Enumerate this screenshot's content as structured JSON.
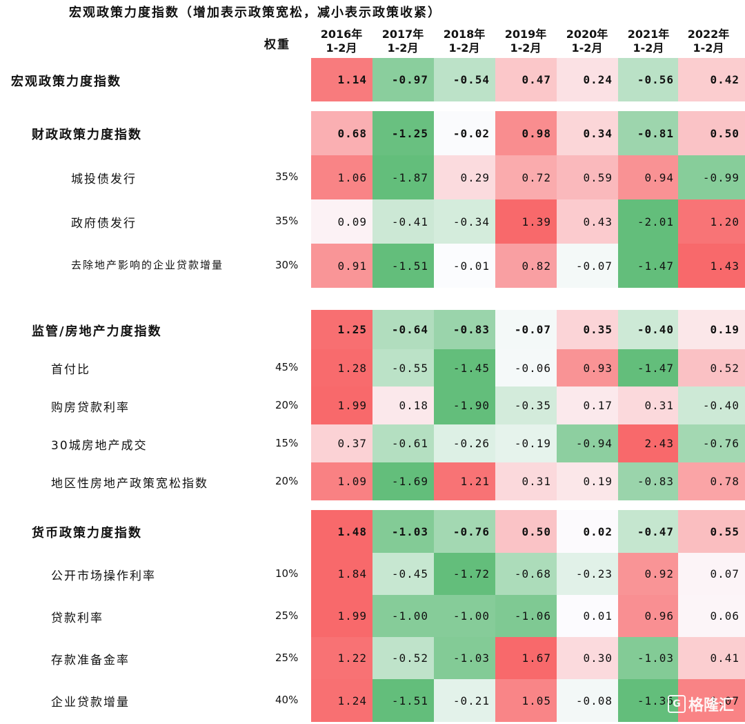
{
  "title": "宏观政策力度指数（增加表示政策宽松，减小表示政策收紧）",
  "weight_header": "权重",
  "watermark": {
    "badge": "G",
    "text": "格隆汇"
  },
  "chart_data": {
    "type": "heatmap",
    "title": "宏观政策力度指数（增加表示政策宽松，减小表示政策收紧）",
    "columns": [
      {
        "year": "2016年",
        "period": "1-2月"
      },
      {
        "year": "2017年",
        "period": "1-2月"
      },
      {
        "year": "2018年",
        "period": "1-2月"
      },
      {
        "year": "2019年",
        "period": "1-2月"
      },
      {
        "year": "2020年",
        "period": "1-2月"
      },
      {
        "year": "2021年",
        "period": "1-2月"
      },
      {
        "year": "2022年",
        "period": "1-2月"
      }
    ],
    "color_scale": {
      "positive": "#f8696b",
      "neutral": "#fcfcff",
      "negative": "#63be7b"
    },
    "rows": [
      {
        "label": "宏观政策力度指数",
        "level": 0,
        "weight": "",
        "values": [
          "1.14",
          "-0.97",
          "-0.54",
          "0.47",
          "0.24",
          "-0.56",
          "0.42"
        ]
      },
      {
        "label": "财政政策力度指数",
        "level": 1,
        "weight": "",
        "values": [
          "0.68",
          "-1.25",
          "-0.02",
          "0.98",
          "0.34",
          "-0.81",
          "0.50"
        ]
      },
      {
        "label": "城投债发行",
        "level": 2,
        "weight": "35%",
        "values": [
          "1.06",
          "-1.87",
          "0.29",
          "0.72",
          "0.59",
          "0.94",
          "-0.99"
        ]
      },
      {
        "label": "政府债发行",
        "level": 2,
        "weight": "35%",
        "values": [
          "0.09",
          "-0.41",
          "-0.34",
          "1.39",
          "0.43",
          "-2.01",
          "1.20"
        ]
      },
      {
        "label": "去除地产影响的企业贷款增量",
        "level": 2,
        "weight": "30%",
        "values": [
          "0.91",
          "-1.51",
          "-0.01",
          "0.82",
          "-0.07",
          "-1.47",
          "1.43"
        ]
      },
      {
        "label": "监管/房地产力度指数",
        "level": 1,
        "weight": "",
        "values": [
          "1.25",
          "-0.64",
          "-0.83",
          "-0.07",
          "0.35",
          "-0.40",
          "0.19"
        ]
      },
      {
        "label": "首付比",
        "level": 3,
        "weight": "45%",
        "values": [
          "1.28",
          "-0.55",
          "-1.45",
          "-0.06",
          "0.93",
          "-1.47",
          "0.52"
        ]
      },
      {
        "label": "购房贷款利率",
        "level": 3,
        "weight": "20%",
        "values": [
          "1.99",
          "0.18",
          "-1.90",
          "-0.35",
          "0.17",
          "0.31",
          "-0.40"
        ]
      },
      {
        "label": "30城房地产成交",
        "level": 3,
        "weight": "15%",
        "values": [
          "0.37",
          "-0.61",
          "-0.26",
          "-0.19",
          "-0.94",
          "2.43",
          "-0.76"
        ]
      },
      {
        "label": "地区性房地产政策宽松指数",
        "level": 3,
        "weight": "20%",
        "values": [
          "1.09",
          "-1.69",
          "1.21",
          "0.31",
          "0.19",
          "-0.83",
          "0.78"
        ]
      },
      {
        "label": "货币政策力度指数",
        "level": 1,
        "weight": "",
        "values": [
          "1.48",
          "-1.03",
          "-0.76",
          "0.50",
          "0.02",
          "-0.47",
          "0.55"
        ]
      },
      {
        "label": "公开市场操作利率",
        "level": 3,
        "weight": "10%",
        "values": [
          "1.84",
          "-0.45",
          "-1.72",
          "-0.68",
          "-0.23",
          "0.92",
          "0.07"
        ]
      },
      {
        "label": "贷款利率",
        "level": 3,
        "weight": "25%",
        "values": [
          "1.99",
          "-1.00",
          "-1.00",
          "-1.06",
          "0.01",
          "0.96",
          "0.06"
        ]
      },
      {
        "label": "存款准备金率",
        "level": 3,
        "weight": "25%",
        "values": [
          "1.22",
          "-0.52",
          "-1.03",
          "1.67",
          "0.30",
          "-1.03",
          "0.41"
        ]
      },
      {
        "label": "企业贷款增量",
        "level": 3,
        "weight": "40%",
        "values": [
          "1.24",
          "-1.51",
          "-0.21",
          "1.05",
          "-0.08",
          "-1.36",
          "1.07"
        ]
      }
    ]
  }
}
